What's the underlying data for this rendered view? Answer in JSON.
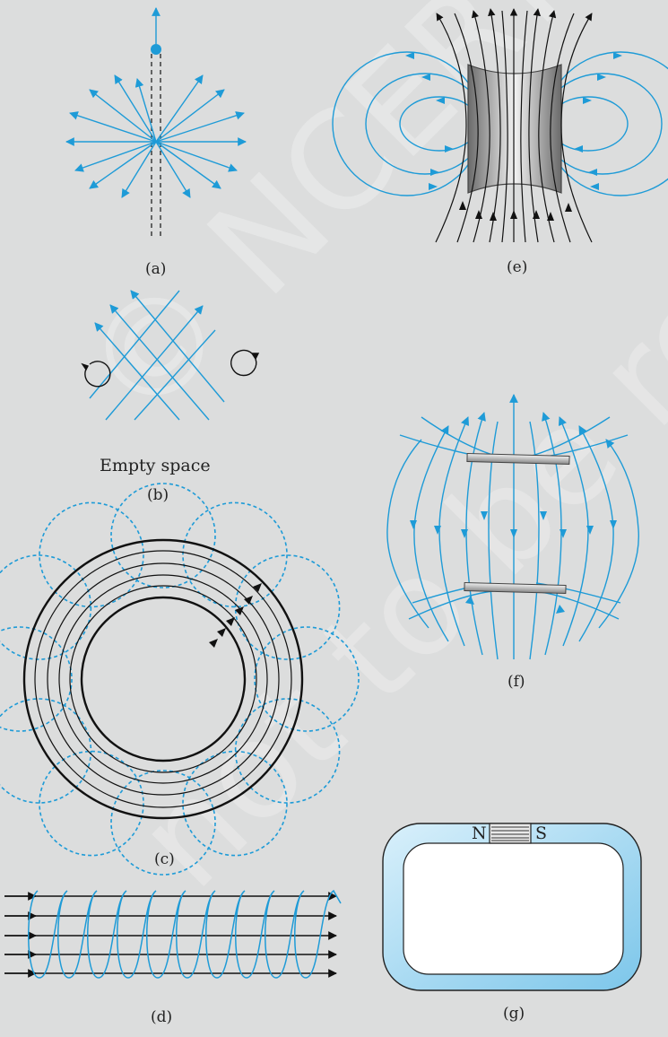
{
  "captions": {
    "a": "(a)",
    "b": "(b)",
    "c": "(c)",
    "d": "(d)",
    "e": "(e)",
    "f": "(f)",
    "g": "(g)"
  },
  "labels": {
    "empty_space": "Empty space",
    "north": "N",
    "south": "S"
  },
  "watermark": {
    "line1": "© NCERT",
    "line2": "not to be republished"
  },
  "colors": {
    "field_line": "#1e9bd7",
    "dark_line": "#111111",
    "background": "#dcdddd",
    "frame_fill": "#8fcfee"
  }
}
